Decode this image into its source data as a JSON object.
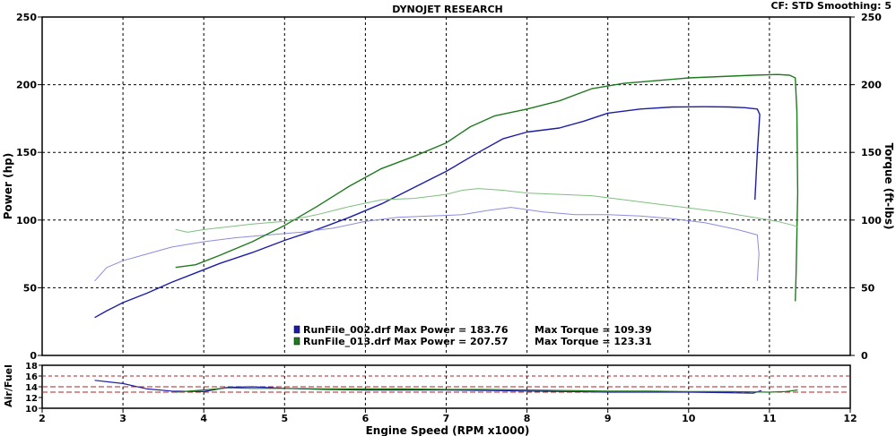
{
  "header": {
    "title": "DYNOJET RESEARCH",
    "cf_info": "CF: STD  Smoothing: 5"
  },
  "colors": {
    "run_002_power": "#1c1ca8",
    "run_002_torque": "#8c8ce0",
    "run_013_power": "#1f7a1f",
    "run_013_torque": "#7fbf7f",
    "grid": "#000000",
    "afr_ref": "#b22222"
  },
  "chart_data": [
    {
      "type": "line",
      "xlabel": "Engine Speed (RPM x1000)",
      "ylabel": "Power (hp)",
      "y2label": "Torque (ft-lbs)",
      "xlim": [
        2,
        12
      ],
      "ylim": [
        0,
        250
      ],
      "y2lim": [
        0,
        250
      ],
      "x_ticks": [
        "2",
        "3",
        "4",
        "5",
        "6",
        "7",
        "8",
        "9",
        "10",
        "11",
        "12"
      ],
      "y_ticks": [
        "0",
        "50",
        "100",
        "150",
        "200",
        "250"
      ],
      "y2_ticks": [
        "0",
        "50",
        "100",
        "150",
        "200",
        "250"
      ],
      "grid": true,
      "legend": [
        {
          "text": "RunFile_002.drf Max Power = 183.76",
          "torque_text": "Max Torque = 109.39",
          "swatch": "blue"
        },
        {
          "text": "RunFile_013.drf Max Power = 207.57",
          "torque_text": "Max Torque = 123.31",
          "swatch": "green"
        }
      ],
      "series": [
        {
          "name": "RunFile_002.drf",
          "kind": "power",
          "axis": "left",
          "color_key": "run_002_power",
          "x": [
            2.65,
            2.8,
            3.0,
            3.3,
            3.6,
            3.9,
            4.2,
            4.6,
            5.0,
            5.4,
            5.8,
            6.2,
            6.6,
            7.0,
            7.4,
            7.7,
            8.0,
            8.4,
            8.7,
            9.0,
            9.4,
            9.8,
            10.2,
            10.5,
            10.7,
            10.85,
            10.88,
            10.85,
            10.82
          ],
          "y": [
            28,
            33,
            39,
            46,
            54,
            61,
            68,
            76,
            85,
            93,
            102,
            112,
            124,
            136,
            150,
            160,
            165,
            168,
            173,
            179,
            182,
            183.5,
            183.76,
            183.5,
            183,
            182,
            178,
            150,
            115
          ]
        },
        {
          "name": "RunFile_002.drf",
          "kind": "torque",
          "axis": "right",
          "color_key": "run_002_torque",
          "x": [
            2.65,
            2.8,
            3.0,
            3.3,
            3.6,
            4.0,
            4.4,
            4.8,
            5.2,
            5.6,
            6.0,
            6.4,
            6.8,
            7.2,
            7.5,
            7.8,
            8.2,
            8.6,
            9.0,
            9.4,
            9.8,
            10.2,
            10.6,
            10.85,
            10.87,
            10.85
          ],
          "y": [
            55,
            65,
            70,
            75,
            80,
            84,
            87,
            89,
            91,
            94,
            99,
            102,
            103,
            104,
            107,
            109.39,
            106,
            104,
            104,
            103,
            101,
            98,
            93,
            89,
            75,
            55
          ]
        },
        {
          "name": "RunFile_013.drf",
          "kind": "power",
          "axis": "left",
          "color_key": "run_013_power",
          "x": [
            3.65,
            3.9,
            4.2,
            4.6,
            5.0,
            5.4,
            5.8,
            6.2,
            6.6,
            7.0,
            7.3,
            7.6,
            8.0,
            8.4,
            8.8,
            9.2,
            9.6,
            10.0,
            10.4,
            10.8,
            11.1,
            11.25,
            11.32,
            11.34,
            11.35,
            11.33,
            11.32
          ],
          "y": [
            65,
            67,
            74,
            84,
            96,
            110,
            125,
            138,
            147,
            157,
            169,
            177,
            182,
            188,
            197,
            201,
            203,
            205,
            206,
            207,
            207.57,
            207,
            205,
            180,
            120,
            60,
            40
          ]
        },
        {
          "name": "RunFile_013.drf",
          "kind": "torque",
          "axis": "right",
          "color_key": "run_013_torque",
          "x": [
            3.65,
            3.8,
            4.0,
            4.3,
            4.6,
            5.0,
            5.4,
            5.8,
            6.2,
            6.6,
            7.0,
            7.2,
            7.4,
            7.7,
            8.0,
            8.4,
            8.8,
            9.2,
            9.6,
            10.0,
            10.4,
            10.8,
            11.1,
            11.3,
            11.35
          ],
          "y": [
            93,
            91,
            93,
            95,
            97,
            99,
            104,
            110,
            115,
            116,
            119,
            122,
            123.31,
            122,
            120,
            119,
            118,
            115,
            112,
            109,
            106,
            102,
            99,
            96,
            95
          ]
        }
      ]
    },
    {
      "type": "line",
      "ylabel": "Air/Fuel",
      "xlim": [
        2,
        12
      ],
      "ylim": [
        10,
        18
      ],
      "y_ticks": [
        "10",
        "12",
        "14",
        "16",
        "18"
      ],
      "reference_lines": [
        13,
        14
      ],
      "grid": true,
      "series": [
        {
          "name": "RunFile_002.drf",
          "color_key": "run_002_power",
          "x": [
            2.65,
            3.0,
            3.3,
            3.6,
            4.0,
            4.3,
            4.6,
            5.0,
            5.5,
            6.0,
            6.5,
            7.0,
            7.5,
            8.0,
            8.5,
            9.0,
            9.5,
            10.0,
            10.5,
            10.8,
            10.9
          ],
          "y": [
            15.2,
            14.6,
            13.6,
            13.2,
            13.1,
            13.9,
            14.0,
            13.7,
            13.5,
            13.4,
            13.4,
            13.4,
            13.3,
            13.2,
            13.1,
            13.0,
            13.0,
            13.0,
            12.9,
            12.8,
            13.3
          ]
        },
        {
          "name": "RunFile_013.drf",
          "color_key": "run_013_power",
          "x": [
            3.65,
            4.0,
            4.3,
            4.6,
            5.0,
            5.5,
            6.0,
            6.5,
            7.0,
            7.5,
            8.0,
            8.5,
            9.0,
            9.5,
            10.0,
            10.5,
            11.0,
            11.2,
            11.35
          ],
          "y": [
            13.0,
            13.4,
            13.8,
            13.7,
            13.7,
            13.6,
            13.6,
            13.6,
            13.5,
            13.5,
            13.4,
            13.3,
            13.2,
            13.2,
            13.1,
            13.1,
            13.0,
            13.1,
            13.4
          ]
        }
      ]
    }
  ]
}
